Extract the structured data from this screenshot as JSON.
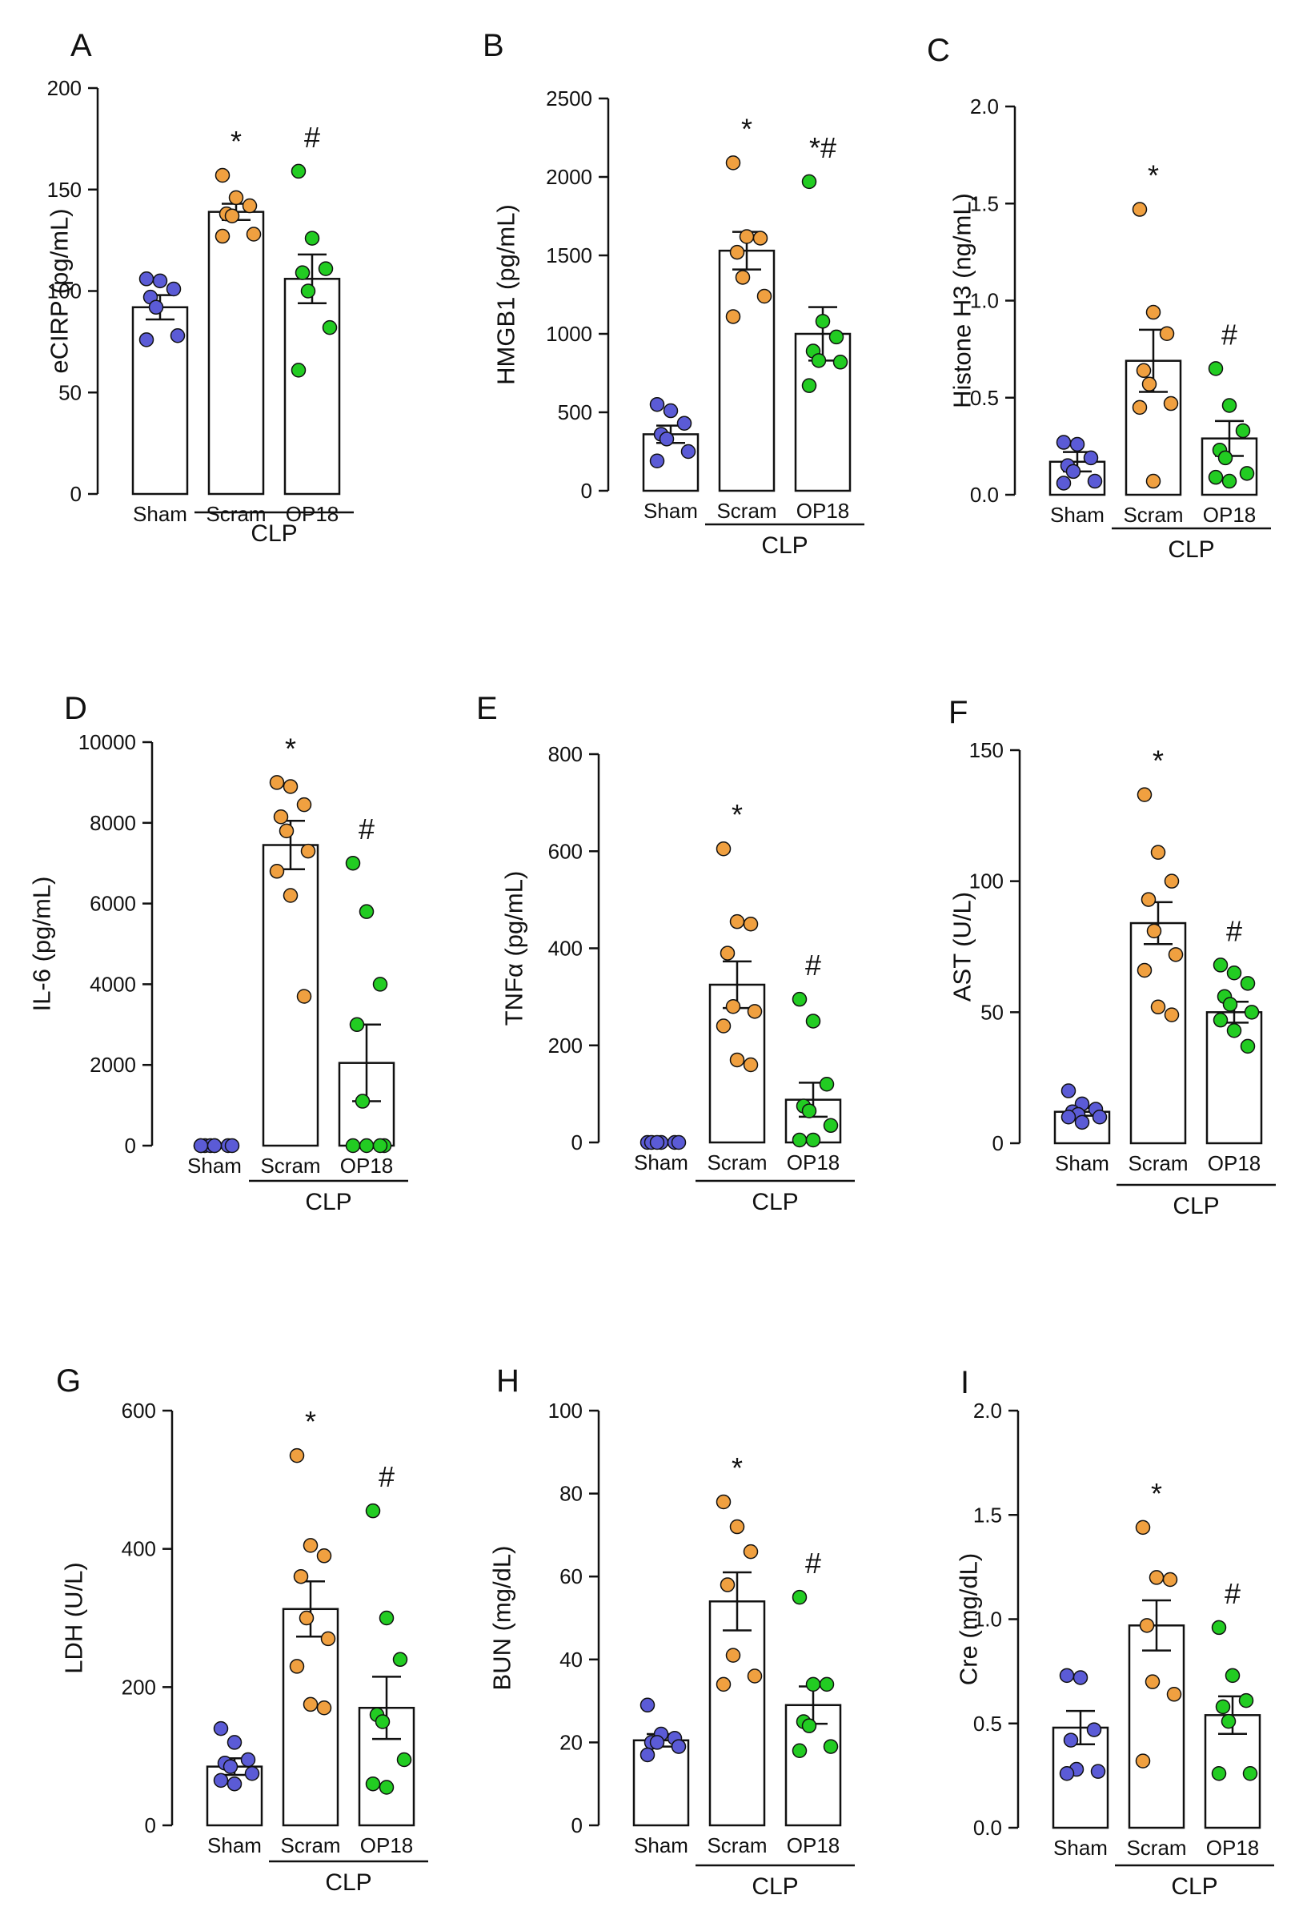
{
  "figure": {
    "groups": [
      "Sham",
      "Scram",
      "OP18"
    ],
    "group_bracket_label": "CLP",
    "colors": {
      "Sham": "#5b5bd6",
      "Scram": "#f0a040",
      "OP18": "#22cc22",
      "axis": "#111111",
      "bar_fill": "#ffffff"
    }
  },
  "chart_data": [
    {
      "panel": "A",
      "type": "bar",
      "ylabel": "eCIRP (pg/mL)",
      "ylim": [
        0,
        200
      ],
      "ticks": [
        0,
        50,
        100,
        150,
        200
      ],
      "tick_labels": [
        "0",
        "50",
        "100",
        "150",
        "200"
      ],
      "categories": [
        "Sham",
        "Scram",
        "OP18"
      ],
      "means": [
        92,
        139,
        106
      ],
      "sem": [
        6,
        4,
        12
      ],
      "points": [
        [
          106,
          105,
          101,
          97,
          92,
          78,
          76
        ],
        [
          157,
          146,
          142,
          138,
          137,
          128,
          127
        ],
        [
          159,
          126,
          111,
          109,
          100,
          82,
          61
        ]
      ],
      "annotations": [
        "",
        "*",
        "#"
      ]
    },
    {
      "panel": "B",
      "type": "bar",
      "ylabel": "HMGB1 (pg/mL)",
      "ylim": [
        0,
        2500
      ],
      "ticks": [
        0,
        500,
        1000,
        1500,
        2000,
        2500
      ],
      "tick_labels": [
        "0",
        "500",
        "1000",
        "1500",
        "2000",
        "2500"
      ],
      "categories": [
        "Sham",
        "Scram",
        "OP18"
      ],
      "means": [
        360,
        1530,
        1000
      ],
      "sem": [
        55,
        120,
        170
      ],
      "points": [
        [
          550,
          510,
          430,
          360,
          330,
          250,
          190
        ],
        [
          2090,
          1620,
          1610,
          1520,
          1360,
          1240,
          1110
        ],
        [
          1970,
          1080,
          980,
          890,
          830,
          820,
          670
        ]
      ],
      "annotations": [
        "",
        "*",
        "*#"
      ]
    },
    {
      "panel": "C",
      "type": "bar",
      "ylabel": "Histone H3 (ng/mL)",
      "ylim": [
        0,
        2.0
      ],
      "ticks": [
        0,
        0.5,
        1.0,
        1.5,
        2.0
      ],
      "tick_labels": [
        "0.0",
        "0.5",
        "1.0",
        "1.5",
        "2.0"
      ],
      "categories": [
        "Sham",
        "Scram",
        "OP18"
      ],
      "means": [
        0.17,
        0.69,
        0.29
      ],
      "sem": [
        0.05,
        0.16,
        0.09
      ],
      "points": [
        [
          0.27,
          0.26,
          0.19,
          0.15,
          0.12,
          0.07,
          0.06
        ],
        [
          1.47,
          0.94,
          0.83,
          0.64,
          0.57,
          0.47,
          0.45,
          0.07
        ],
        [
          0.65,
          0.46,
          0.33,
          0.23,
          0.19,
          0.11,
          0.09,
          0.07
        ]
      ],
      "annotations": [
        "",
        "*",
        "#"
      ]
    },
    {
      "panel": "D",
      "type": "bar",
      "ylabel": "IL-6 (pg/mL)",
      "ylim": [
        0,
        10000
      ],
      "ticks": [
        0,
        2000,
        4000,
        6000,
        8000,
        10000
      ],
      "tick_labels": [
        "0",
        "2000",
        "4000",
        "6000",
        "8000",
        "10000"
      ],
      "categories": [
        "Sham",
        "Scram",
        "OP18"
      ],
      "means": [
        0,
        7450,
        2050
      ],
      "sem": [
        0,
        600,
        950
      ],
      "points": [
        [
          0,
          0,
          0,
          0,
          0,
          0,
          0,
          0
        ],
        [
          9000,
          8900,
          8450,
          8150,
          7800,
          7300,
          6800,
          6200,
          3700
        ],
        [
          7000,
          5800,
          4000,
          3000,
          1100,
          0,
          0,
          0,
          0
        ]
      ],
      "annotations": [
        "",
        "*",
        "#"
      ]
    },
    {
      "panel": "E",
      "type": "bar",
      "ylabel": "TNFα (pg/mL)",
      "ylim": [
        0,
        800
      ],
      "ticks": [
        0,
        200,
        400,
        600,
        800
      ],
      "tick_labels": [
        "0",
        "200",
        "400",
        "600",
        "800"
      ],
      "categories": [
        "Sham",
        "Scram",
        "OP18"
      ],
      "means": [
        0,
        325,
        88
      ],
      "sem": [
        0,
        48,
        35
      ],
      "points": [
        [
          0,
          0,
          0,
          0,
          0,
          0
        ],
        [
          605,
          455,
          450,
          390,
          280,
          270,
          240,
          170,
          160
        ],
        [
          295,
          250,
          120,
          75,
          65,
          35,
          5,
          5
        ]
      ],
      "annotations": [
        "",
        "*",
        "#"
      ]
    },
    {
      "panel": "F",
      "type": "bar",
      "ylabel": "AST (U/L)",
      "ylim": [
        0,
        150
      ],
      "ticks": [
        0,
        50,
        100,
        150
      ],
      "tick_labels": [
        "0",
        "50",
        "100",
        "150"
      ],
      "categories": [
        "Sham",
        "Scram",
        "OP18"
      ],
      "means": [
        12,
        84,
        50
      ],
      "sem": [
        1.5,
        8,
        4
      ],
      "points": [
        [
          20,
          15,
          13,
          12,
          11,
          10,
          10,
          8
        ],
        [
          133,
          111,
          100,
          93,
          81,
          72,
          66,
          52,
          49
        ],
        [
          68,
          65,
          61,
          56,
          53,
          50,
          47,
          43,
          37
        ]
      ],
      "annotations": [
        "",
        "*",
        "#"
      ]
    },
    {
      "panel": "G",
      "type": "bar",
      "ylabel": "LDH (U/L)",
      "ylim": [
        0,
        600
      ],
      "ticks": [
        0,
        200,
        400,
        600
      ],
      "tick_labels": [
        "0",
        "200",
        "400",
        "600"
      ],
      "categories": [
        "Sham",
        "Scram",
        "OP18"
      ],
      "means": [
        85,
        313,
        170
      ],
      "sem": [
        12,
        40,
        45
      ],
      "points": [
        [
          140,
          120,
          95,
          90,
          85,
          75,
          65,
          60
        ],
        [
          535,
          405,
          390,
          360,
          300,
          270,
          230,
          175,
          170
        ],
        [
          455,
          300,
          240,
          160,
          150,
          95,
          60,
          55
        ]
      ],
      "annotations": [
        "",
        "*",
        "#"
      ]
    },
    {
      "panel": "H",
      "type": "bar",
      "ylabel": "BUN (mg/dL)",
      "ylim": [
        0,
        100
      ],
      "ticks": [
        0,
        20,
        40,
        60,
        80,
        100
      ],
      "tick_labels": [
        "0",
        "20",
        "40",
        "60",
        "80",
        "100"
      ],
      "categories": [
        "Sham",
        "Scram",
        "OP18"
      ],
      "means": [
        20.5,
        54,
        29
      ],
      "sem": [
        1.5,
        7,
        4.5
      ],
      "points": [
        [
          29,
          22,
          21,
          20,
          20,
          19,
          17
        ],
        [
          78,
          72,
          66,
          58,
          41,
          36,
          34
        ],
        [
          55,
          34,
          34,
          25,
          24,
          19,
          18
        ]
      ],
      "annotations": [
        "",
        "*",
        "#"
      ]
    },
    {
      "panel": "I",
      "type": "bar",
      "ylabel": "Cre (mg/dL)",
      "ylim": [
        0,
        2.0
      ],
      "ticks": [
        0,
        0.5,
        1.0,
        1.5,
        2.0
      ],
      "tick_labels": [
        "0.0",
        "0.5",
        "1.0",
        "1.5",
        "2.0"
      ],
      "categories": [
        "Sham",
        "Scram",
        "OP18"
      ],
      "means": [
        0.48,
        0.97,
        0.54
      ],
      "sem": [
        0.08,
        0.12,
        0.09
      ],
      "points": [
        [
          0.73,
          0.72,
          0.47,
          0.42,
          0.28,
          0.27,
          0.26
        ],
        [
          1.44,
          1.2,
          1.19,
          0.97,
          0.7,
          0.64,
          0.32
        ],
        [
          0.96,
          0.73,
          0.61,
          0.58,
          0.51,
          0.26,
          0.26
        ]
      ],
      "annotations": [
        "",
        "*",
        "#"
      ]
    }
  ]
}
